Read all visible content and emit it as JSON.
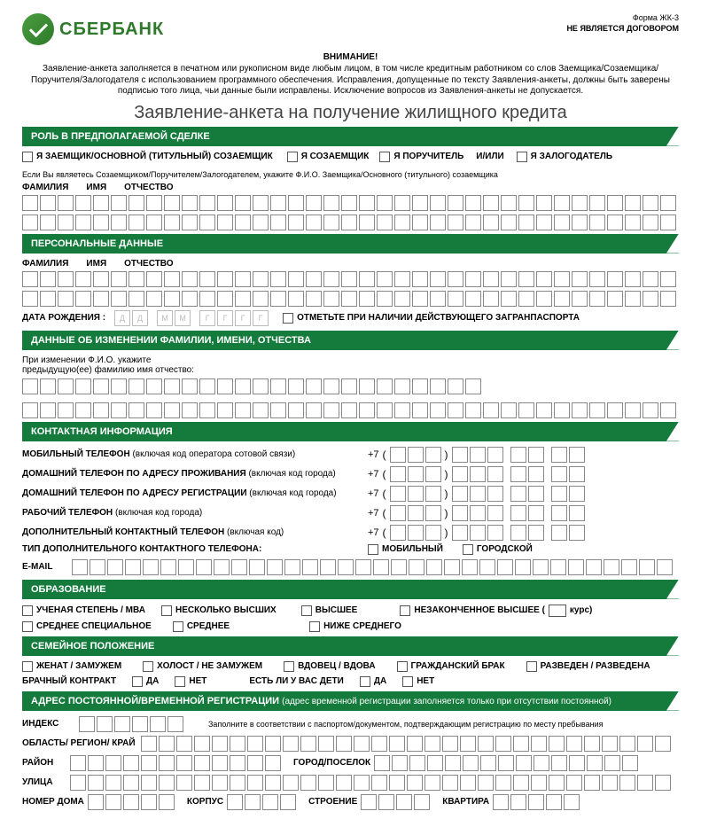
{
  "header": {
    "brand": "СБЕРБАНК",
    "not_contract": "НЕ ЯВЛЯЕТСЯ ДОГОВОРОМ",
    "form_no": "Форма ЖК-3"
  },
  "attention": {
    "title": "ВНИМАНИЕ!",
    "text": "Заявление-анкета заполняется в печатном или рукописном виде любым лицом, в том числе кредитным работником со слов Заемщика/Созаемщика/Поручителя/Залогодателя с использованием программного обеспечения. Исправления, допущенные по тексту Заявления-анкеты, должны быть заверены подписью того лица, чьи данные были исправлены. Исключение вопросов из Заявления-анкеты не допускается."
  },
  "main_title": "Заявление-анкета на получение жилищного кредита",
  "sections": {
    "role": "РОЛЬ В ПРЕДПОЛАГАЕМОЙ СДЕЛКЕ",
    "personal": "ПЕРСОНАЛЬНЫЕ ДАННЫЕ",
    "fio_change": "ДАННЫЕ ОБ ИЗМЕНЕНИИ ФАМИЛИИ, ИМЕНИ, ОТЧЕСТВА",
    "contact": "КОНТАКТНАЯ ИНФОРМАЦИЯ",
    "education": "ОБРАЗОВАНИЕ",
    "marital": "СЕМЕЙНОЕ ПОЛОЖЕНИЕ",
    "address": "АДРЕС ПОСТОЯННОЙ/ВРЕМЕННОЙ РЕГИСТРАЦИИ",
    "address_sub": "(адрес временной регистрации заполняется только при отсутствии постоянной)"
  },
  "role": {
    "main_borrower": "Я ЗАЕМЩИК/ОСНОВНОЙ (ТИТУЛЬНЫЙ) СОЗАЕМЩИК",
    "coborrower": "Я СОЗАЕМЩИК",
    "guarantor": "Я ПОРУЧИТЕЛЬ",
    "andor": "И/ИЛИ",
    "mortgagor": "Я ЗАЛОГОДАТЕЛЬ",
    "hint": "Если Вы являетесь Созаемщиком/Поручителем/Залогодателем, укажите Ф.И.О. Заемщика/Основного (титульного) созаемщика"
  },
  "fio": {
    "f": "ФАМИЛИЯ",
    "i": "ИМЯ",
    "o": "ОТЧЕСТВО"
  },
  "personal": {
    "dob_label": "ДАТА РОЖДЕНИЯ :",
    "dob_ph": [
      "Д",
      "Д",
      "М",
      "М",
      "Г",
      "Г",
      "Г",
      "Г"
    ],
    "passport": "ОТМЕТЬТЕ ПРИ НАЛИЧИИ ДЕЙСТВУЮЩЕГО ЗАГРАНПАСПОРТА"
  },
  "fio_change": {
    "hint": "При изменении Ф.И.О. укажите предыдущую(ее) фамилию имя отчество:"
  },
  "contact": {
    "prefix": "+7",
    "mobile_b": "МОБИЛЬНЫЙ ТЕЛЕФОН",
    "mobile_n": "(включая код оператора сотовой связи)",
    "home_live_b": "ДОМАШНИЙ ТЕЛЕФОН ПО АДРЕСУ ПРОЖИВАНИЯ",
    "home_live_n": "(включая код города)",
    "home_reg_b": "ДОМАШНИЙ ТЕЛЕФОН ПО АДРЕСУ РЕГИСТРАЦИИ",
    "home_reg_n": "(включая код города)",
    "work_b": "РАБОЧИЙ ТЕЛЕФОН",
    "work_n": "(включая код города)",
    "extra_b": "ДОПОЛНИТЕЛЬНЫЙ КОНТАКТНЫЙ ТЕЛЕФОН",
    "extra_n": "(включая код)",
    "extra_type": "ТИП ДОПОЛНИТЕЛЬНОГО КОНТАКТНОГО ТЕЛЕФОНА:",
    "type_mobile": "МОБИЛЬНЫЙ",
    "type_city": "ГОРОДСКОЙ",
    "email": "E-MAIL"
  },
  "education": {
    "degree": "УЧЕНАЯ СТЕПЕНЬ / МВА",
    "several": "НЕСКОЛЬКО ВЫСШИХ",
    "higher": "ВЫСШЕЕ",
    "incomplete": "НЕЗАКОНЧЕННОЕ ВЫСШЕЕ (",
    "course": "курс)",
    "spec": "СРЕДНЕЕ СПЕЦИАЛЬНОЕ",
    "middle": "СРЕДНЕЕ",
    "below": "НИЖЕ СРЕДНЕГО"
  },
  "marital": {
    "married": "ЖЕНАТ / ЗАМУЖЕМ",
    "single": "ХОЛОСТ / НЕ ЗАМУЖЕМ",
    "widow": "ВДОВЕЦ / ВДОВА",
    "civil": "ГРАЖДАНСКИЙ БРАК",
    "divorced": "РАЗВЕДЕН / РАЗВЕДЕНА",
    "contract": "БРАЧНЫЙ КОНТРАКТ",
    "children": "ЕСТЬ ЛИ У ВАС ДЕТИ",
    "yes": "ДА",
    "no": "НЕТ"
  },
  "address": {
    "index": "ИНДЕКС",
    "hint": "Заполните в соответствии с паспортом/документом, подтверждающим регистрацию по месту пребывания",
    "region": "ОБЛАСТЬ/ РЕГИОН/ КРАЙ",
    "district": "РАЙОН",
    "city": "ГОРОД/ПОСЕЛОК",
    "street": "УЛИЦА",
    "house": "НОМЕР ДОМА",
    "corpus": "КОРПУС",
    "building": "СТРОЕНИЕ",
    "flat": "КВАРТИРА"
  },
  "style": {
    "section_bg": "#147b3c",
    "logo_color": "#2d7a2a",
    "cell_border": "#888"
  }
}
